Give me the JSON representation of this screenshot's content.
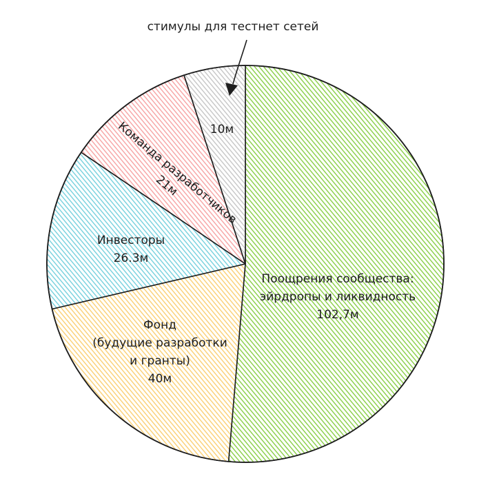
{
  "chart_data": {
    "type": "pie",
    "title": "",
    "start": "top",
    "direction": "clockwise",
    "slices": [
      {
        "key": "community",
        "lines": [
          "Поощрения сообщества:",
          "эйрдропы и ликвидность",
          "102,7м"
        ],
        "value": 102.7,
        "color": "#8fd14f"
      },
      {
        "key": "fund",
        "lines": [
          "Фонд",
          "(будущие разработки",
          "и гранты)",
          "40м"
        ],
        "value": 40,
        "color": "#fbd27a"
      },
      {
        "key": "investors",
        "lines": [
          "Инвесторы",
          "26.3м"
        ],
        "value": 26.3,
        "color": "#7dd3df"
      },
      {
        "key": "team",
        "lines": [
          "Команда разработчиков",
          "21м"
        ],
        "value": 21,
        "color": "#f7a8a8"
      },
      {
        "key": "testnet",
        "lines": [
          "10м"
        ],
        "value": 10,
        "color": "#c9c9c9"
      }
    ],
    "annotation": {
      "text": "стимулы для тестнет сетей",
      "target": "testnet"
    }
  }
}
